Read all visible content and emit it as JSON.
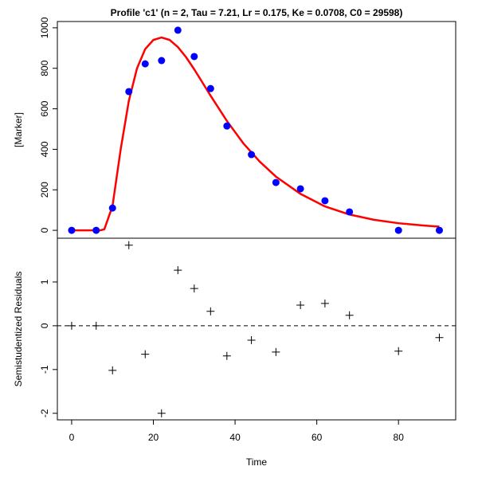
{
  "chart_data": [
    {
      "type": "scatter",
      "title": "Profile 'c1' (n = 2, Tau = 7.21, Lr = 0.175, Ke = 0.0708, C0 = 29598)",
      "xlabel": "",
      "ylabel": "[Marker]",
      "xlim": [
        -3.5,
        94
      ],
      "ylim": [
        -39,
        1031
      ],
      "yticks": [
        0,
        200,
        400,
        600,
        800,
        1000
      ],
      "grid": false,
      "points": {
        "color": "#0000FF",
        "x": [
          0,
          6,
          10,
          14,
          18,
          22,
          26,
          30,
          34,
          38,
          44,
          50,
          56,
          62,
          68,
          80,
          90
        ],
        "y": [
          0,
          0,
          110,
          685,
          822,
          838,
          988,
          858,
          700,
          515,
          374,
          236,
          205,
          146,
          91,
          0,
          0
        ]
      },
      "fit_curve": {
        "color": "#FF0000",
        "x": [
          0,
          7,
          8,
          10,
          12,
          14,
          16,
          18,
          20,
          22,
          24,
          26,
          28,
          30,
          34,
          38,
          42,
          46,
          50,
          56,
          62,
          68,
          74,
          80,
          86,
          90
        ],
        "y": [
          0,
          0,
          5,
          120,
          400,
          640,
          800,
          895,
          940,
          952,
          940,
          905,
          855,
          795,
          665,
          540,
          430,
          340,
          265,
          180,
          118,
          78,
          52,
          35,
          24,
          18
        ]
      }
    },
    {
      "type": "scatter",
      "xlabel": "Time",
      "ylabel": "Semistudentized Residuals",
      "xlim": [
        -3.5,
        94
      ],
      "ylim": [
        -2.15,
        2.0
      ],
      "xticks": [
        0,
        20,
        40,
        60,
        80
      ],
      "yticks": [
        -2,
        -1,
        0,
        1
      ],
      "reference_line": {
        "y": 0,
        "style": "dashed"
      },
      "marker": "plus",
      "points": {
        "x": [
          0,
          6,
          10,
          14,
          18,
          22,
          26,
          30,
          34,
          38,
          44,
          50,
          56,
          62,
          68,
          80,
          90
        ],
        "y": [
          0,
          0,
          -1.02,
          1.84,
          -0.65,
          -2.0,
          1.27,
          0.85,
          0.33,
          -0.69,
          -0.33,
          -0.6,
          0.47,
          0.51,
          0.24,
          -0.58,
          -0.27
        ]
      }
    }
  ]
}
